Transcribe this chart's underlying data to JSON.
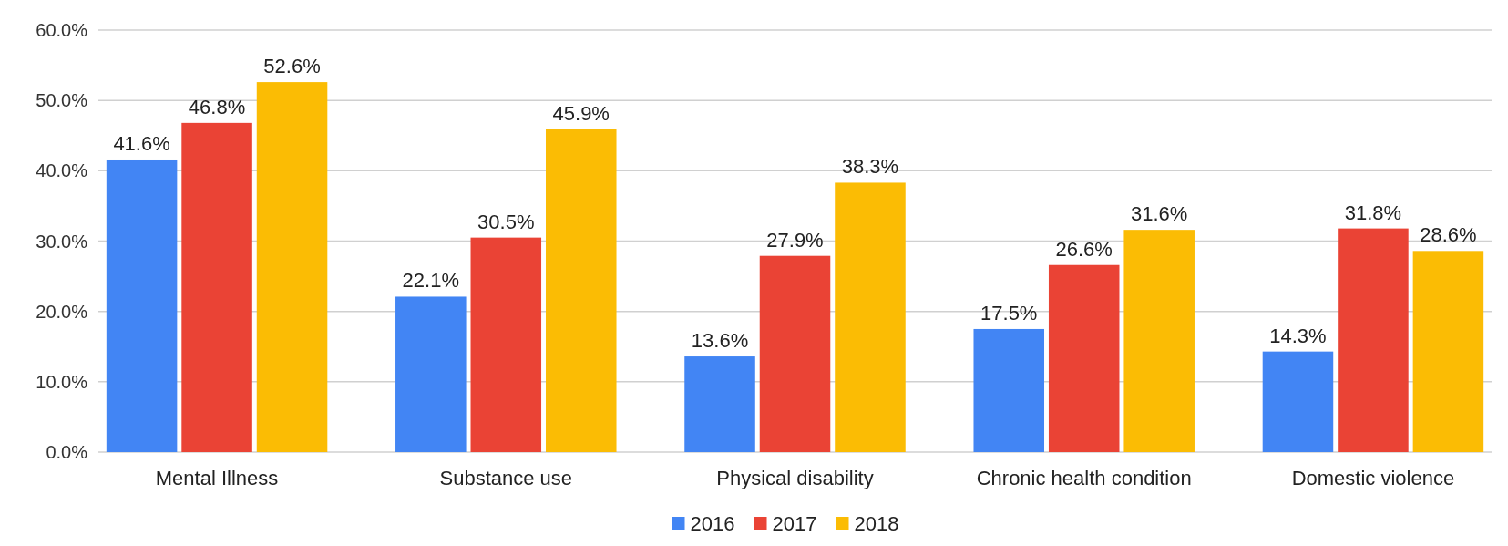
{
  "chart_data": {
    "type": "bar",
    "categories": [
      "Mental Illness",
      "Substance use",
      "Physical disability",
      "Chronic health condition",
      "Domestic violence"
    ],
    "series": [
      {
        "name": "2016",
        "color": "#4285f4",
        "values": [
          41.6,
          22.1,
          13.6,
          17.5,
          14.3
        ],
        "value_labels": [
          "41.6%",
          "22.1%",
          "13.6%",
          "17.5%",
          "14.3%"
        ]
      },
      {
        "name": "2017",
        "color": "#ea4335",
        "values": [
          46.8,
          30.5,
          27.9,
          26.6,
          31.8
        ],
        "value_labels": [
          "46.8%",
          "30.5%",
          "27.9%",
          "26.6%",
          "31.8%"
        ]
      },
      {
        "name": "2018",
        "color": "#fbbc04",
        "values": [
          52.6,
          45.9,
          38.3,
          31.6,
          28.6
        ],
        "value_labels": [
          "52.6%",
          "45.9%",
          "38.3%",
          "31.6%",
          "28.6%"
        ]
      }
    ],
    "ylim": [
      0,
      60
    ],
    "yticks": [
      {
        "value": 0,
        "label": "0.0%"
      },
      {
        "value": 10,
        "label": "10.0%"
      },
      {
        "value": 20,
        "label": "20.0%"
      },
      {
        "value": 30,
        "label": "30.0%"
      },
      {
        "value": 40,
        "label": "40.0%"
      },
      {
        "value": 50,
        "label": "50.0%"
      },
      {
        "value": 60,
        "label": "60.0%"
      }
    ],
    "grid": "y",
    "legend": "bottom"
  }
}
